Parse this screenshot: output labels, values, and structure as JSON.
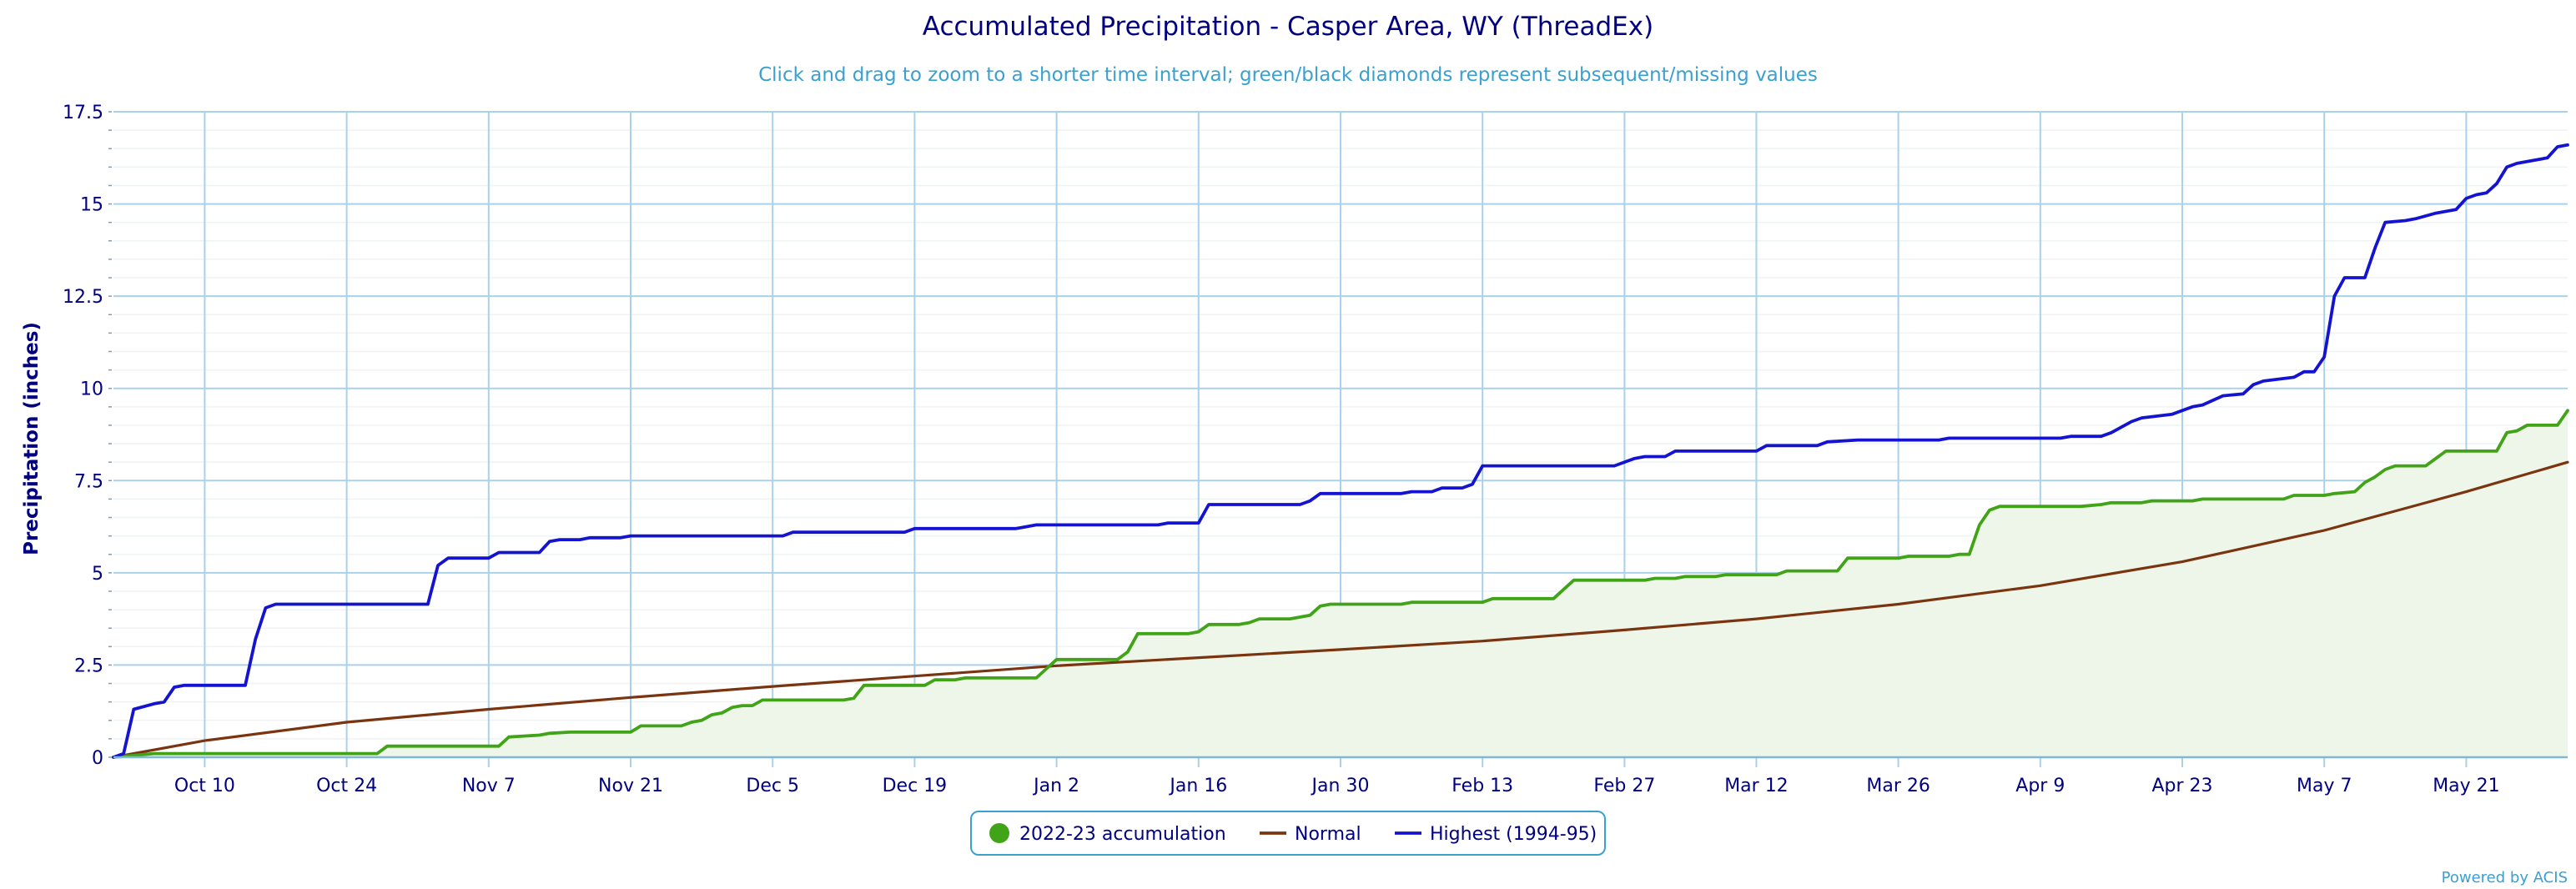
{
  "chart_data": {
    "type": "line",
    "title": "Accumulated Precipitation - Casper Area, WY (ThreadEx)",
    "subtitle": "Click and drag to zoom to a shorter time interval; green/black diamonds represent subsequent/missing values",
    "ylabel": "Precipitation (inches)",
    "xlabel": "",
    "xlim": [
      "2022-10-01",
      "2023-05-31"
    ],
    "ylim": [
      0,
      17.5
    ],
    "y_ticks": [
      "0",
      "2.5",
      "5",
      "7.5",
      "10",
      "12.5",
      "15",
      "17.5"
    ],
    "x_ticks": [
      {
        "date": "2022-10-10",
        "label": "Oct 10"
      },
      {
        "date": "2022-10-24",
        "label": "Oct 24"
      },
      {
        "date": "2022-11-07",
        "label": "Nov 7"
      },
      {
        "date": "2022-11-21",
        "label": "Nov 21"
      },
      {
        "date": "2022-12-05",
        "label": "Dec 5"
      },
      {
        "date": "2022-12-19",
        "label": "Dec 19"
      },
      {
        "date": "2023-01-02",
        "label": "Jan 2"
      },
      {
        "date": "2023-01-16",
        "label": "Jan 16"
      },
      {
        "date": "2023-01-30",
        "label": "Jan 30"
      },
      {
        "date": "2023-02-13",
        "label": "Feb 13"
      },
      {
        "date": "2023-02-27",
        "label": "Feb 27"
      },
      {
        "date": "2023-03-12",
        "label": "Mar 12"
      },
      {
        "date": "2023-03-26",
        "label": "Mar 26"
      },
      {
        "date": "2023-04-09",
        "label": "Apr 9"
      },
      {
        "date": "2023-04-23",
        "label": "Apr 23"
      },
      {
        "date": "2023-05-07",
        "label": "May 7"
      },
      {
        "date": "2023-05-21",
        "label": "May 21"
      }
    ],
    "grid": true,
    "legend_position": "bottom-center",
    "series": [
      {
        "name": "2022-23 accumulation",
        "color": "#41a317",
        "fill": "#edf6e8",
        "legend_marker": "circle",
        "points": [
          [
            "2022-10-01",
            0
          ],
          [
            "2022-10-03",
            0.05
          ],
          [
            "2022-10-05",
            0.1
          ],
          [
            "2022-10-27",
            0.1
          ],
          [
            "2022-10-28",
            0.3
          ],
          [
            "2022-11-08",
            0.3
          ],
          [
            "2022-11-09",
            0.55
          ],
          [
            "2022-11-12",
            0.6
          ],
          [
            "2022-11-13",
            0.65
          ],
          [
            "2022-11-15",
            0.68
          ],
          [
            "2022-11-21",
            0.68
          ],
          [
            "2022-11-22",
            0.85
          ],
          [
            "2022-11-26",
            0.85
          ],
          [
            "2022-11-27",
            0.95
          ],
          [
            "2022-11-28",
            1.0
          ],
          [
            "2022-11-29",
            1.15
          ],
          [
            "2022-11-30",
            1.2
          ],
          [
            "2022-12-01",
            1.35
          ],
          [
            "2022-12-02",
            1.4
          ],
          [
            "2022-12-03",
            1.4
          ],
          [
            "2022-12-04",
            1.55
          ],
          [
            "2022-12-12",
            1.55
          ],
          [
            "2022-12-13",
            1.6
          ],
          [
            "2022-12-14",
            1.95
          ],
          [
            "2022-12-20",
            1.95
          ],
          [
            "2022-12-21",
            2.1
          ],
          [
            "2022-12-23",
            2.1
          ],
          [
            "2022-12-24",
            2.15
          ],
          [
            "2022-12-31",
            2.15
          ],
          [
            "2023-01-01",
            2.4
          ],
          [
            "2023-01-02",
            2.65
          ],
          [
            "2023-01-08",
            2.65
          ],
          [
            "2023-01-09",
            2.85
          ],
          [
            "2023-01-10",
            3.35
          ],
          [
            "2023-01-15",
            3.35
          ],
          [
            "2023-01-16",
            3.4
          ],
          [
            "2023-01-17",
            3.6
          ],
          [
            "2023-01-20",
            3.6
          ],
          [
            "2023-01-21",
            3.65
          ],
          [
            "2023-01-22",
            3.75
          ],
          [
            "2023-01-25",
            3.75
          ],
          [
            "2023-01-27",
            3.85
          ],
          [
            "2023-01-28",
            4.1
          ],
          [
            "2023-01-29",
            4.15
          ],
          [
            "2023-02-05",
            4.15
          ],
          [
            "2023-02-06",
            4.2
          ],
          [
            "2023-02-13",
            4.2
          ],
          [
            "2023-02-14",
            4.3
          ],
          [
            "2023-02-20",
            4.3
          ],
          [
            "2023-02-22",
            4.8
          ],
          [
            "2023-03-01",
            4.8
          ],
          [
            "2023-03-02",
            4.85
          ],
          [
            "2023-03-04",
            4.85
          ],
          [
            "2023-03-05",
            4.9
          ],
          [
            "2023-03-08",
            4.9
          ],
          [
            "2023-03-09",
            4.95
          ],
          [
            "2023-03-14",
            4.95
          ],
          [
            "2023-03-15",
            5.05
          ],
          [
            "2023-03-20",
            5.05
          ],
          [
            "2023-03-21",
            5.4
          ],
          [
            "2023-03-26",
            5.4
          ],
          [
            "2023-03-27",
            5.45
          ],
          [
            "2023-03-31",
            5.45
          ],
          [
            "2023-04-01",
            5.5
          ],
          [
            "2023-04-02",
            5.5
          ],
          [
            "2023-04-03",
            6.3
          ],
          [
            "2023-04-04",
            6.7
          ],
          [
            "2023-04-05",
            6.8
          ],
          [
            "2023-04-13",
            6.8
          ],
          [
            "2023-04-15",
            6.85
          ],
          [
            "2023-04-16",
            6.9
          ],
          [
            "2023-04-19",
            6.9
          ],
          [
            "2023-04-20",
            6.95
          ],
          [
            "2023-04-24",
            6.95
          ],
          [
            "2023-04-25",
            7.0
          ],
          [
            "2023-05-03",
            7.0
          ],
          [
            "2023-05-04",
            7.1
          ],
          [
            "2023-05-07",
            7.1
          ],
          [
            "2023-05-08",
            7.15
          ],
          [
            "2023-05-10",
            7.2
          ],
          [
            "2023-05-11",
            7.45
          ],
          [
            "2023-05-12",
            7.6
          ],
          [
            "2023-05-13",
            7.8
          ],
          [
            "2023-05-14",
            7.9
          ],
          [
            "2023-05-17",
            7.9
          ],
          [
            "2023-05-18",
            8.1
          ],
          [
            "2023-05-19",
            8.3
          ],
          [
            "2023-05-24",
            8.3
          ],
          [
            "2023-05-25",
            8.8
          ],
          [
            "2023-05-26",
            8.85
          ],
          [
            "2023-05-27",
            9.0
          ],
          [
            "2023-05-30",
            9.0
          ],
          [
            "2023-05-31",
            9.4
          ]
        ]
      },
      {
        "name": "Normal",
        "color": "#7a3410",
        "legend_marker": "line",
        "points": [
          [
            "2022-10-01",
            0
          ],
          [
            "2022-10-10",
            0.45
          ],
          [
            "2022-10-24",
            0.95
          ],
          [
            "2022-11-07",
            1.3
          ],
          [
            "2022-11-21",
            1.62
          ],
          [
            "2022-12-05",
            1.92
          ],
          [
            "2022-12-19",
            2.2
          ],
          [
            "2023-01-02",
            2.48
          ],
          [
            "2023-01-16",
            2.7
          ],
          [
            "2023-01-30",
            2.92
          ],
          [
            "2023-02-13",
            3.15
          ],
          [
            "2023-02-27",
            3.45
          ],
          [
            "2023-03-12",
            3.75
          ],
          [
            "2023-03-26",
            4.15
          ],
          [
            "2023-04-09",
            4.65
          ],
          [
            "2023-04-23",
            5.3
          ],
          [
            "2023-05-07",
            6.15
          ],
          [
            "2023-05-21",
            7.2
          ],
          [
            "2023-05-31",
            8.0
          ]
        ]
      },
      {
        "name": "Highest (1994-95)",
        "color": "#1414d0",
        "legend_marker": "line",
        "points": [
          [
            "2022-10-01",
            0
          ],
          [
            "2022-10-02",
            0.1
          ],
          [
            "2022-10-03",
            1.3
          ],
          [
            "2022-10-05",
            1.45
          ],
          [
            "2022-10-06",
            1.5
          ],
          [
            "2022-10-07",
            1.9
          ],
          [
            "2022-10-08",
            1.95
          ],
          [
            "2022-10-14",
            1.95
          ],
          [
            "2022-10-15",
            3.2
          ],
          [
            "2022-10-16",
            4.05
          ],
          [
            "2022-10-17",
            4.15
          ],
          [
            "2022-11-01",
            4.15
          ],
          [
            "2022-11-02",
            5.2
          ],
          [
            "2022-11-03",
            5.4
          ],
          [
            "2022-11-07",
            5.4
          ],
          [
            "2022-11-08",
            5.55
          ],
          [
            "2022-11-12",
            5.55
          ],
          [
            "2022-11-13",
            5.85
          ],
          [
            "2022-11-14",
            5.9
          ],
          [
            "2022-11-16",
            5.9
          ],
          [
            "2022-11-17",
            5.95
          ],
          [
            "2022-11-20",
            5.95
          ],
          [
            "2022-11-21",
            6.0
          ],
          [
            "2022-12-06",
            6.0
          ],
          [
            "2022-12-07",
            6.1
          ],
          [
            "2022-12-18",
            6.1
          ],
          [
            "2022-12-19",
            6.2
          ],
          [
            "2022-12-29",
            6.2
          ],
          [
            "2022-12-30",
            6.25
          ],
          [
            "2022-12-31",
            6.3
          ],
          [
            "2023-01-12",
            6.3
          ],
          [
            "2023-01-13",
            6.35
          ],
          [
            "2023-01-16",
            6.35
          ],
          [
            "2023-01-17",
            6.85
          ],
          [
            "2023-01-26",
            6.85
          ],
          [
            "2023-01-27",
            6.95
          ],
          [
            "2023-01-28",
            7.15
          ],
          [
            "2023-02-05",
            7.15
          ],
          [
            "2023-02-06",
            7.2
          ],
          [
            "2023-02-08",
            7.2
          ],
          [
            "2023-02-09",
            7.3
          ],
          [
            "2023-02-11",
            7.3
          ],
          [
            "2023-02-12",
            7.4
          ],
          [
            "2023-02-13",
            7.9
          ],
          [
            "2023-02-26",
            7.9
          ],
          [
            "2023-02-28",
            8.1
          ],
          [
            "2023-03-01",
            8.15
          ],
          [
            "2023-03-03",
            8.15
          ],
          [
            "2023-03-04",
            8.3
          ],
          [
            "2023-03-12",
            8.3
          ],
          [
            "2023-03-13",
            8.45
          ],
          [
            "2023-03-18",
            8.45
          ],
          [
            "2023-03-19",
            8.55
          ],
          [
            "2023-03-22",
            8.6
          ],
          [
            "2023-03-30",
            8.6
          ],
          [
            "2023-03-31",
            8.65
          ],
          [
            "2023-04-11",
            8.65
          ],
          [
            "2023-04-12",
            8.7
          ],
          [
            "2023-04-15",
            8.7
          ],
          [
            "2023-04-16",
            8.8
          ],
          [
            "2023-04-18",
            9.1
          ],
          [
            "2023-04-19",
            9.2
          ],
          [
            "2023-04-22",
            9.3
          ],
          [
            "2023-04-24",
            9.5
          ],
          [
            "2023-04-25",
            9.55
          ],
          [
            "2023-04-27",
            9.8
          ],
          [
            "2023-04-29",
            9.85
          ],
          [
            "2023-04-30",
            10.1
          ],
          [
            "2023-05-01",
            10.2
          ],
          [
            "2023-05-04",
            10.3
          ],
          [
            "2023-05-05",
            10.45
          ],
          [
            "2023-05-06",
            10.45
          ],
          [
            "2023-05-07",
            10.85
          ],
          [
            "2023-05-08",
            12.5
          ],
          [
            "2023-05-09",
            13.0
          ],
          [
            "2023-05-11",
            13.0
          ],
          [
            "2023-05-12",
            13.8
          ],
          [
            "2023-05-13",
            14.5
          ],
          [
            "2023-05-15",
            14.55
          ],
          [
            "2023-05-16",
            14.6
          ],
          [
            "2023-05-18",
            14.75
          ],
          [
            "2023-05-20",
            14.85
          ],
          [
            "2023-05-21",
            15.15
          ],
          [
            "2023-05-22",
            15.25
          ],
          [
            "2023-05-23",
            15.3
          ],
          [
            "2023-05-24",
            15.55
          ],
          [
            "2023-05-25",
            16.0
          ],
          [
            "2023-05-26",
            16.1
          ],
          [
            "2023-05-28",
            16.2
          ],
          [
            "2023-05-29",
            16.25
          ],
          [
            "2023-05-30",
            16.55
          ],
          [
            "2023-05-31",
            16.6
          ]
        ]
      }
    ]
  },
  "credit": "Powered by ACIS"
}
